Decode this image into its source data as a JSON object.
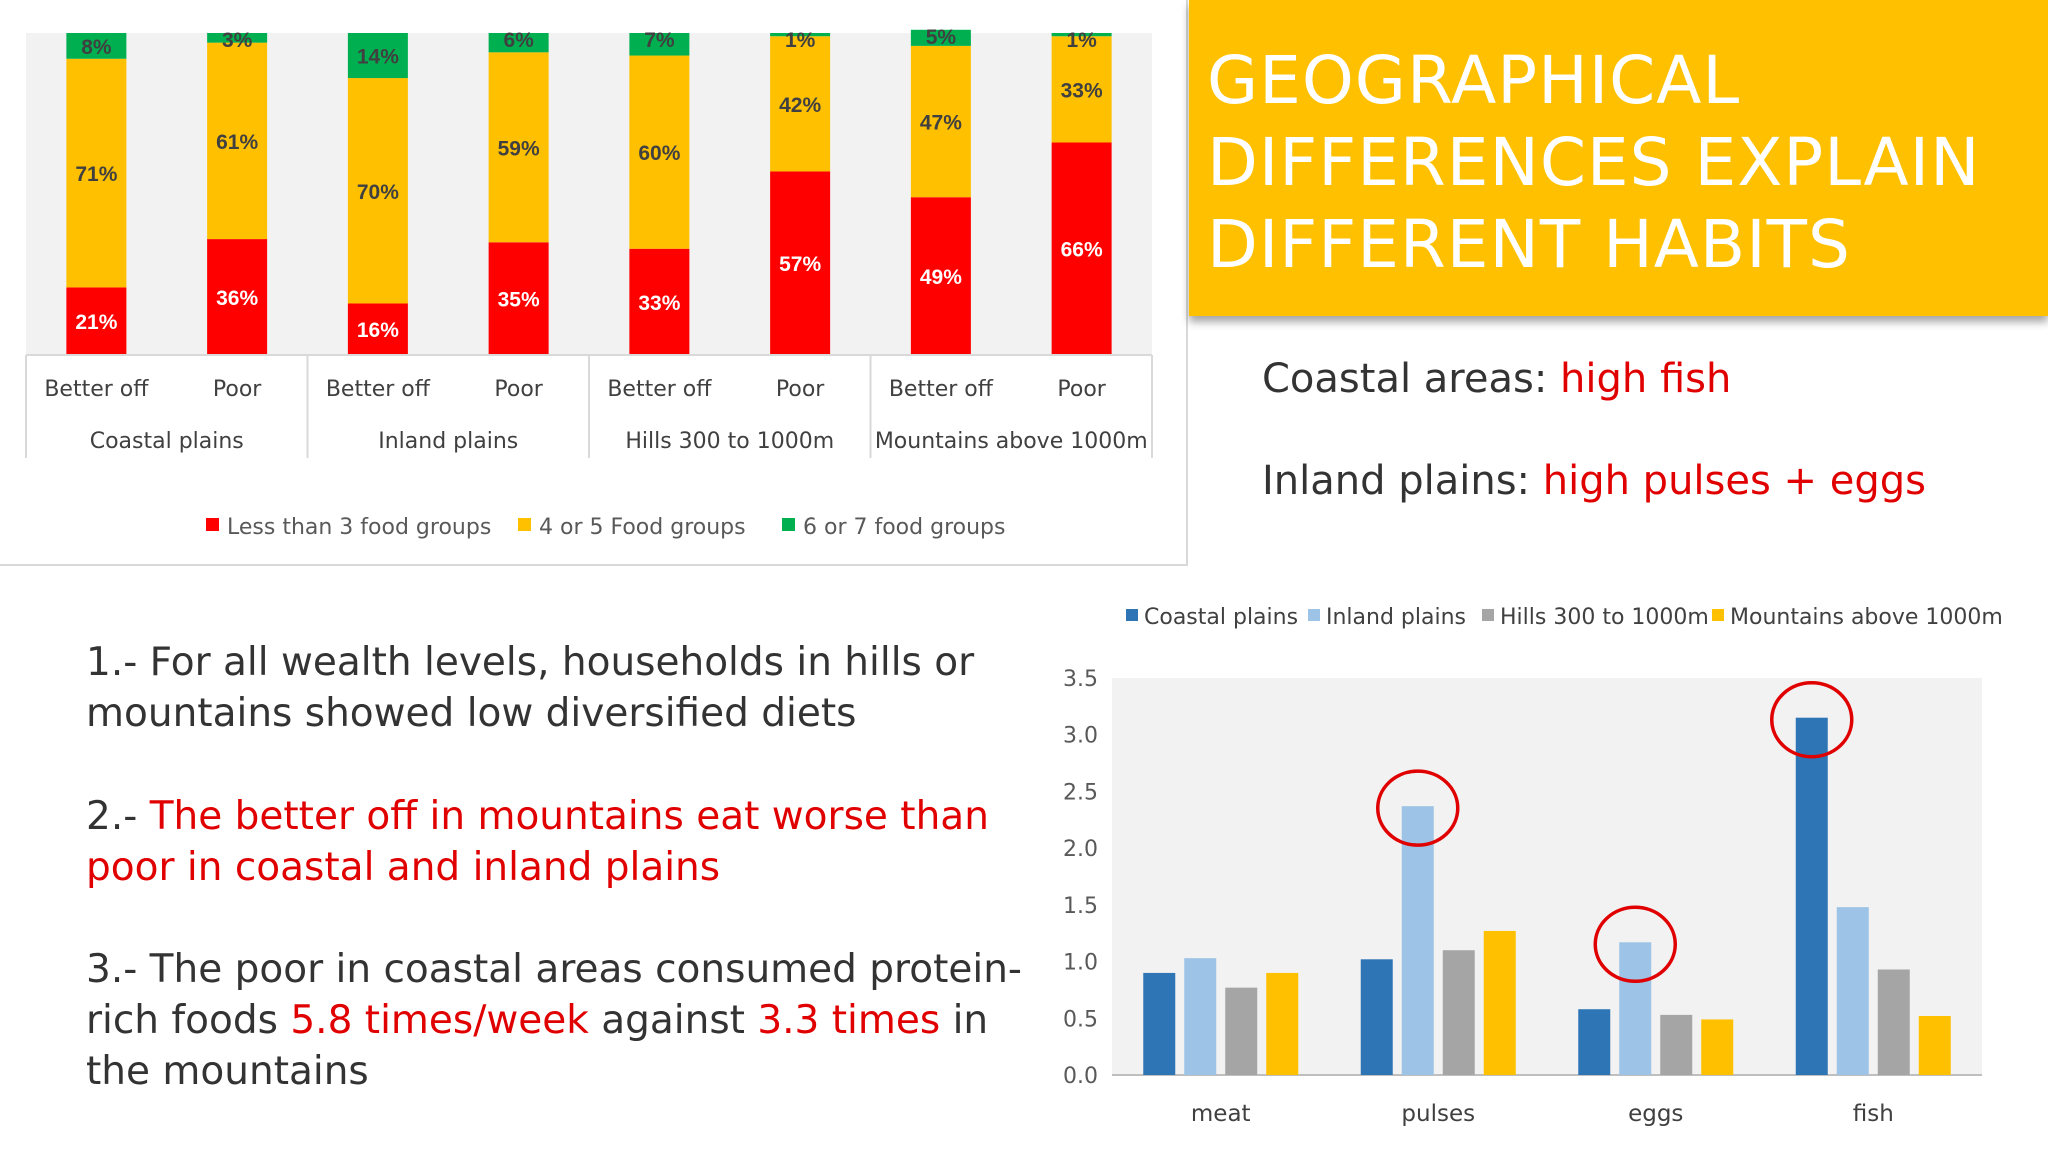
{
  "title": "GEOGRAPHICAL\nDIFFERENCES EXPLAIN\nDIFFERENT HABITS",
  "notes": [
    {
      "prefix": "Coastal areas: ",
      "highlight": "high fish"
    },
    {
      "prefix": "Inland plains: ",
      "highlight": "high pulses + eggs"
    }
  ],
  "points": {
    "p1": "1.- For all wealth levels, households in hills or mountains showed low diversified diets",
    "p2_prefix": "2.- ",
    "p2_highlight": "The better off in mountains eat worse than poor in coastal and inland plains",
    "p3_a": "3.- The poor in coastal areas consumed protein-rich foods ",
    "p3_b": "5.8 times/week",
    "p3_c": " against ",
    "p3_d": "3.3 times",
    "p3_e": " in the mountains"
  },
  "colors": {
    "red": "#ff0000",
    "yellow": "#ffc000",
    "green": "#00b050",
    "coastal": "#2e75b6",
    "inland": "#9dc3e6",
    "hills": "#a5a5a5",
    "mountains": "#ffc000",
    "accent_text": "#e00000"
  },
  "chart_data": [
    {
      "type": "bar",
      "stacked": true,
      "percent": true,
      "groups": [
        "Coastal plains",
        "Inland plains",
        "Hills 300 to 1000m",
        "Mountains above 1000m"
      ],
      "categories": [
        "Better off",
        "Poor",
        "Better off",
        "Poor",
        "Better off",
        "Poor",
        "Better off",
        "Poor"
      ],
      "series": [
        {
          "name": "Less than 3 food groups",
          "values": [
            21,
            36,
            16,
            35,
            33,
            57,
            49,
            66
          ]
        },
        {
          "name": "4 or 5 Food groups",
          "values": [
            71,
            61,
            70,
            59,
            60,
            42,
            47,
            33
          ]
        },
        {
          "name": "6 or 7 food groups",
          "values": [
            8,
            3,
            14,
            6,
            7,
            1,
            5,
            1
          ]
        }
      ],
      "labels": [
        [
          "21%",
          "71%",
          "8%"
        ],
        [
          "36%",
          "61%",
          "3%"
        ],
        [
          "16%",
          "70%",
          "14%"
        ],
        [
          "35%",
          "59%",
          "6%"
        ],
        [
          "33%",
          "60%",
          "7%"
        ],
        [
          "57%",
          "42%",
          "1%"
        ],
        [
          "49%",
          "47%",
          "5%"
        ],
        [
          "66%",
          "33%",
          "1%"
        ]
      ],
      "ylim": [
        0,
        100
      ],
      "legend": "bottom"
    },
    {
      "type": "bar",
      "categories": [
        "meat",
        "pulses",
        "eggs",
        "fish"
      ],
      "series": [
        {
          "name": "Coastal plains",
          "values": [
            0.9,
            1.02,
            0.58,
            3.15
          ]
        },
        {
          "name": "Inland plains",
          "values": [
            1.03,
            2.37,
            1.17,
            1.48
          ]
        },
        {
          "name": "Hills 300 to 1000m",
          "values": [
            0.77,
            1.1,
            0.53,
            0.93
          ]
        },
        {
          "name": "Mountains above 1000m",
          "values": [
            0.9,
            1.27,
            0.49,
            0.52
          ]
        }
      ],
      "yticks": [
        "0.0",
        "0.5",
        "1.0",
        "1.5",
        "2.0",
        "2.5",
        "3.0",
        "3.5"
      ],
      "ylim": [
        0,
        3.5
      ],
      "legend": "top",
      "highlighted": [
        {
          "category": "pulses",
          "series": "Inland plains"
        },
        {
          "category": "eggs",
          "series": "Inland plains"
        },
        {
          "category": "fish",
          "series": "Coastal plains"
        }
      ]
    }
  ]
}
